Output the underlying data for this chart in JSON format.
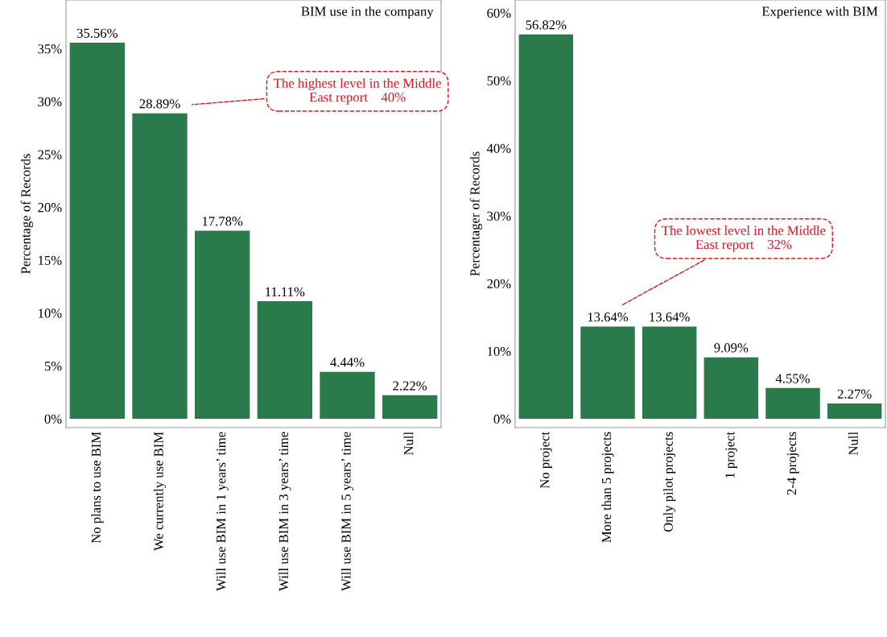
{
  "chart_data": [
    {
      "type": "bar",
      "title": "BIM use in the company",
      "ylabel": "Percentage of Records",
      "categories": [
        "No plans to use BIM",
        "We currently use BIM",
        "Will use BIM in 1 years’ time",
        "Will use BIM in 3 years’ time",
        "Will use BIM in 5 years’ time",
        "Null"
      ],
      "values": [
        35.56,
        28.89,
        17.78,
        11.11,
        4.44,
        2.22
      ],
      "color": "#2a7a4b",
      "value_labels": [
        "35.56%",
        "28.89%",
        "17.78%",
        "11.11%",
        "4.44%",
        "2.22%"
      ],
      "ylim": [
        -0.84,
        39.6
      ],
      "yticks": [
        {
          "value": 0,
          "label": "0%"
        },
        {
          "value": 5,
          "label": "5%"
        },
        {
          "value": 10,
          "label": "10%"
        },
        {
          "value": 15,
          "label": "15%"
        },
        {
          "value": 20,
          "label": "20%"
        },
        {
          "value": 25,
          "label": "25%"
        },
        {
          "value": 30,
          "label": "30%"
        },
        {
          "value": 35,
          "label": "35%"
        }
      ],
      "annotations": [
        "The highest level in the Middle\nEast report    40%"
      ]
    },
    {
      "type": "bar",
      "title": "Experience with BIM",
      "ylabel": "Percentager of Records",
      "categories": [
        "No project",
        "More than 5 projects",
        "Only pilot projects",
        "1 project",
        "2-4 projects",
        "Null"
      ],
      "values": [
        56.82,
        13.64,
        13.64,
        9.09,
        4.55,
        2.27
      ],
      "color": "#2a7a4b",
      "value_labels": [
        "56.82%",
        "13.64%",
        "13.64%",
        "9.09%",
        "4.55%",
        "2.27%"
      ],
      "ylim": [
        -1.3,
        61.9
      ],
      "yticks": [
        {
          "value": 0,
          "label": "0%"
        },
        {
          "value": 10,
          "label": "10%"
        },
        {
          "value": 20,
          "label": "20%"
        },
        {
          "value": 30,
          "label": "30%"
        },
        {
          "value": 40,
          "label": "40%"
        },
        {
          "value": 50,
          "label": "50%"
        },
        {
          "value": 60,
          "label": "60%"
        }
      ],
      "annotations": [
        "The lowest level in the Middle\nEast report    32%"
      ]
    }
  ]
}
